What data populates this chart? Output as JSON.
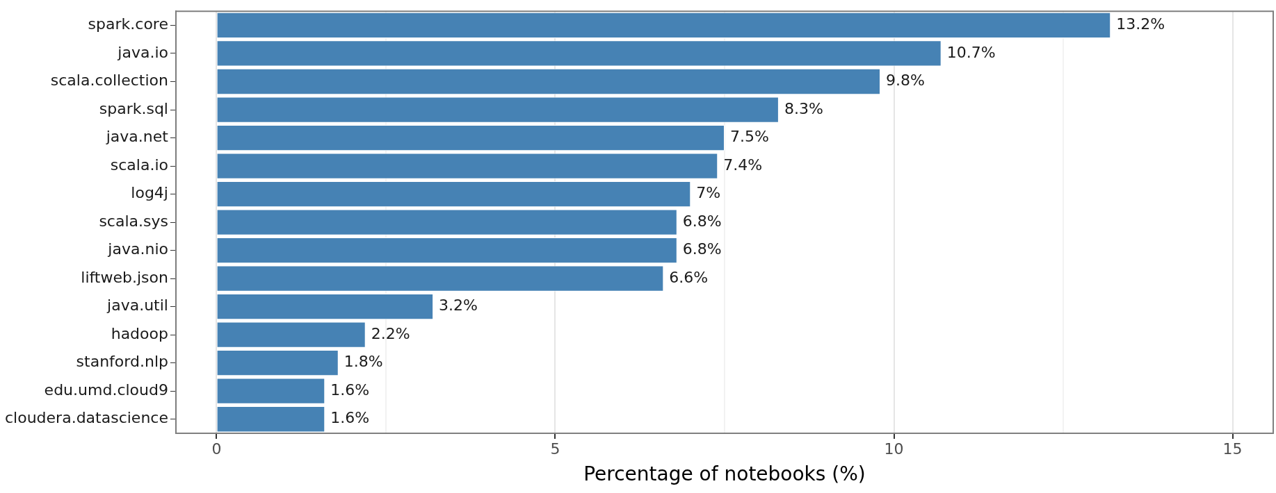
{
  "chart_data": {
    "type": "bar",
    "orientation": "horizontal",
    "xlabel": "Percentage of notebooks (%)",
    "categories": [
      "spark.core",
      "java.io",
      "scala.collection",
      "spark.sql",
      "java.net",
      "scala.io",
      "log4j",
      "scala.sys",
      "java.nio",
      "liftweb.json",
      "java.util",
      "hadoop",
      "stanford.nlp",
      "edu.umd.cloud9",
      "cloudera.datascience"
    ],
    "values": [
      13.2,
      10.7,
      9.8,
      8.3,
      7.5,
      7.4,
      7,
      6.8,
      6.8,
      6.6,
      3.2,
      2.2,
      1.8,
      1.6,
      1.6
    ],
    "value_labels": [
      "13.2%",
      "10.7%",
      "9.8%",
      "8.3%",
      "7.5%",
      "7.4%",
      "7%",
      "6.8%",
      "6.8%",
      "6.6%",
      "3.2%",
      "2.2%",
      "1.8%",
      "1.6%",
      "1.6%"
    ],
    "color": "#4682b4",
    "xlim": [
      -0.6,
      15.6
    ],
    "xticks": [
      0,
      {
        "value": 2.5,
        "label": null
      },
      5,
      {
        "value": 7.5,
        "label": null
      },
      10,
      {
        "value": 12.5,
        "label": null
      },
      15
    ],
    "grid": "x",
    "legend": false
  }
}
